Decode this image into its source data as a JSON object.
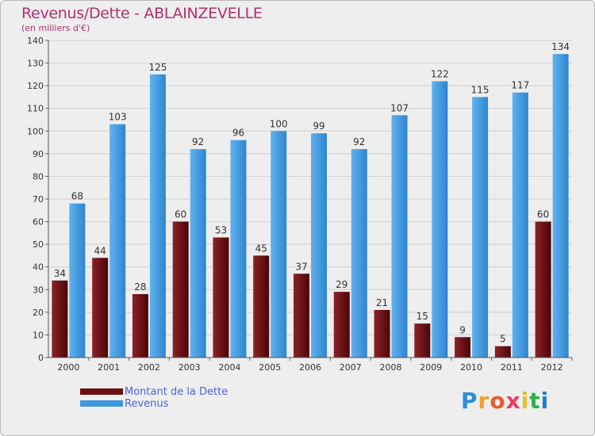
{
  "title": "Revenus/Dette - ABLAINZEVELLE",
  "subtitle": "(en milliers d'€)",
  "legend": [
    {
      "label": "Montant de la Dette",
      "color": "#6b0f12"
    },
    {
      "label": "Revenus",
      "color": "#3f97de"
    }
  ],
  "logo": {
    "text": "Proxiti",
    "letters": [
      "P",
      "r",
      "o",
      "x",
      "i",
      "t",
      "i"
    ],
    "colors": [
      "#2b8fd8",
      "#f0a030",
      "#e85a2a",
      "#e84060",
      "#e8c020",
      "#2bb04a",
      "#1a7fd0"
    ]
  },
  "chart_data": {
    "type": "bar",
    "categories": [
      "2000",
      "2001",
      "2002",
      "2003",
      "2004",
      "2005",
      "2006",
      "2007",
      "2008",
      "2009",
      "2010",
      "2011",
      "2012"
    ],
    "series": [
      {
        "name": "Montant de la Dette",
        "values": [
          34,
          44,
          28,
          60,
          53,
          45,
          37,
          29,
          21,
          15,
          9,
          5,
          60
        ]
      },
      {
        "name": "Revenus",
        "values": [
          68,
          103,
          125,
          92,
          96,
          100,
          99,
          92,
          107,
          122,
          115,
          117,
          134
        ]
      }
    ],
    "title": "Revenus/Dette - ABLAINZEVELLE",
    "ylabel": "(en milliers d'€)",
    "xlabel": "",
    "ylim": [
      0,
      140
    ],
    "yticks": [
      0,
      10,
      20,
      30,
      40,
      50,
      60,
      70,
      80,
      90,
      100,
      110,
      120,
      130,
      140
    ],
    "grid": true,
    "legend_position": "bottom-left"
  }
}
